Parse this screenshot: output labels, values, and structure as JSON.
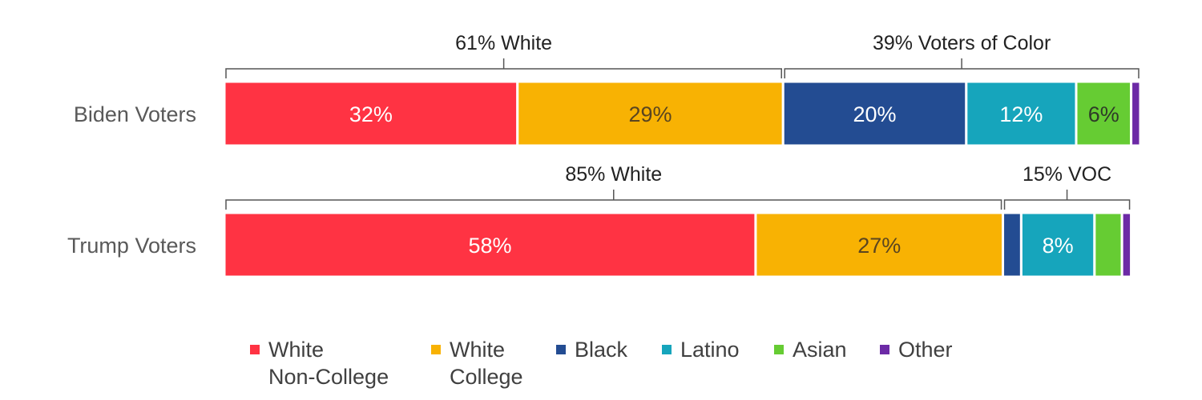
{
  "chart_data": {
    "type": "bar",
    "orientation": "horizontal",
    "stacked": true,
    "categories": [
      "Biden Voters",
      "Trump Voters"
    ],
    "series": [
      {
        "name": "White Non-College",
        "color": "#FF3343",
        "values": [
          32,
          58
        ]
      },
      {
        "name": "White College",
        "color": "#F8B203",
        "values": [
          29,
          27
        ]
      },
      {
        "name": "Black",
        "color": "#234C92",
        "values": [
          20,
          2
        ]
      },
      {
        "name": "Latino",
        "color": "#16A5BC",
        "values": [
          12,
          8
        ]
      },
      {
        "name": "Asian",
        "color": "#66CC33",
        "values": [
          6,
          3
        ]
      },
      {
        "name": "Other",
        "color": "#6C2AA6",
        "values": [
          1,
          1
        ]
      }
    ],
    "data_labels": [
      [
        "32%",
        "29%",
        "20%",
        "12%",
        "6%",
        ""
      ],
      [
        "58%",
        "27%",
        "",
        "8%",
        "",
        ""
      ]
    ],
    "label_colors": [
      [
        "#ffffff",
        "#5a4520",
        "#ffffff",
        "#ffffff",
        "#2e3a28",
        ""
      ],
      [
        "#ffffff",
        "#5a4520",
        "",
        "#ffffff",
        "",
        ""
      ]
    ],
    "brackets": [
      [
        {
          "label": "61% White",
          "from_series": 0,
          "to_series": 1
        },
        {
          "label": "39% Voters of Color",
          "from_series": 2,
          "to_series": 5
        }
      ],
      [
        {
          "label": "85% White",
          "from_series": 0,
          "to_series": 1
        },
        {
          "label": "15% VOC",
          "from_series": 2,
          "to_series": 5
        }
      ]
    ],
    "legend": [
      {
        "lines": [
          "White",
          "Non-College"
        ],
        "color": "#FF3343"
      },
      {
        "lines": [
          "White",
          "College"
        ],
        "color": "#F8B203"
      },
      {
        "lines": [
          "Black"
        ],
        "color": "#234C92"
      },
      {
        "lines": [
          "Latino"
        ],
        "color": "#16A5BC"
      },
      {
        "lines": [
          "Asian"
        ],
        "color": "#66CC33"
      },
      {
        "lines": [
          "Other"
        ],
        "color": "#6C2AA6"
      }
    ],
    "legend_position": "bottom",
    "xlim": [
      0,
      100
    ]
  }
}
